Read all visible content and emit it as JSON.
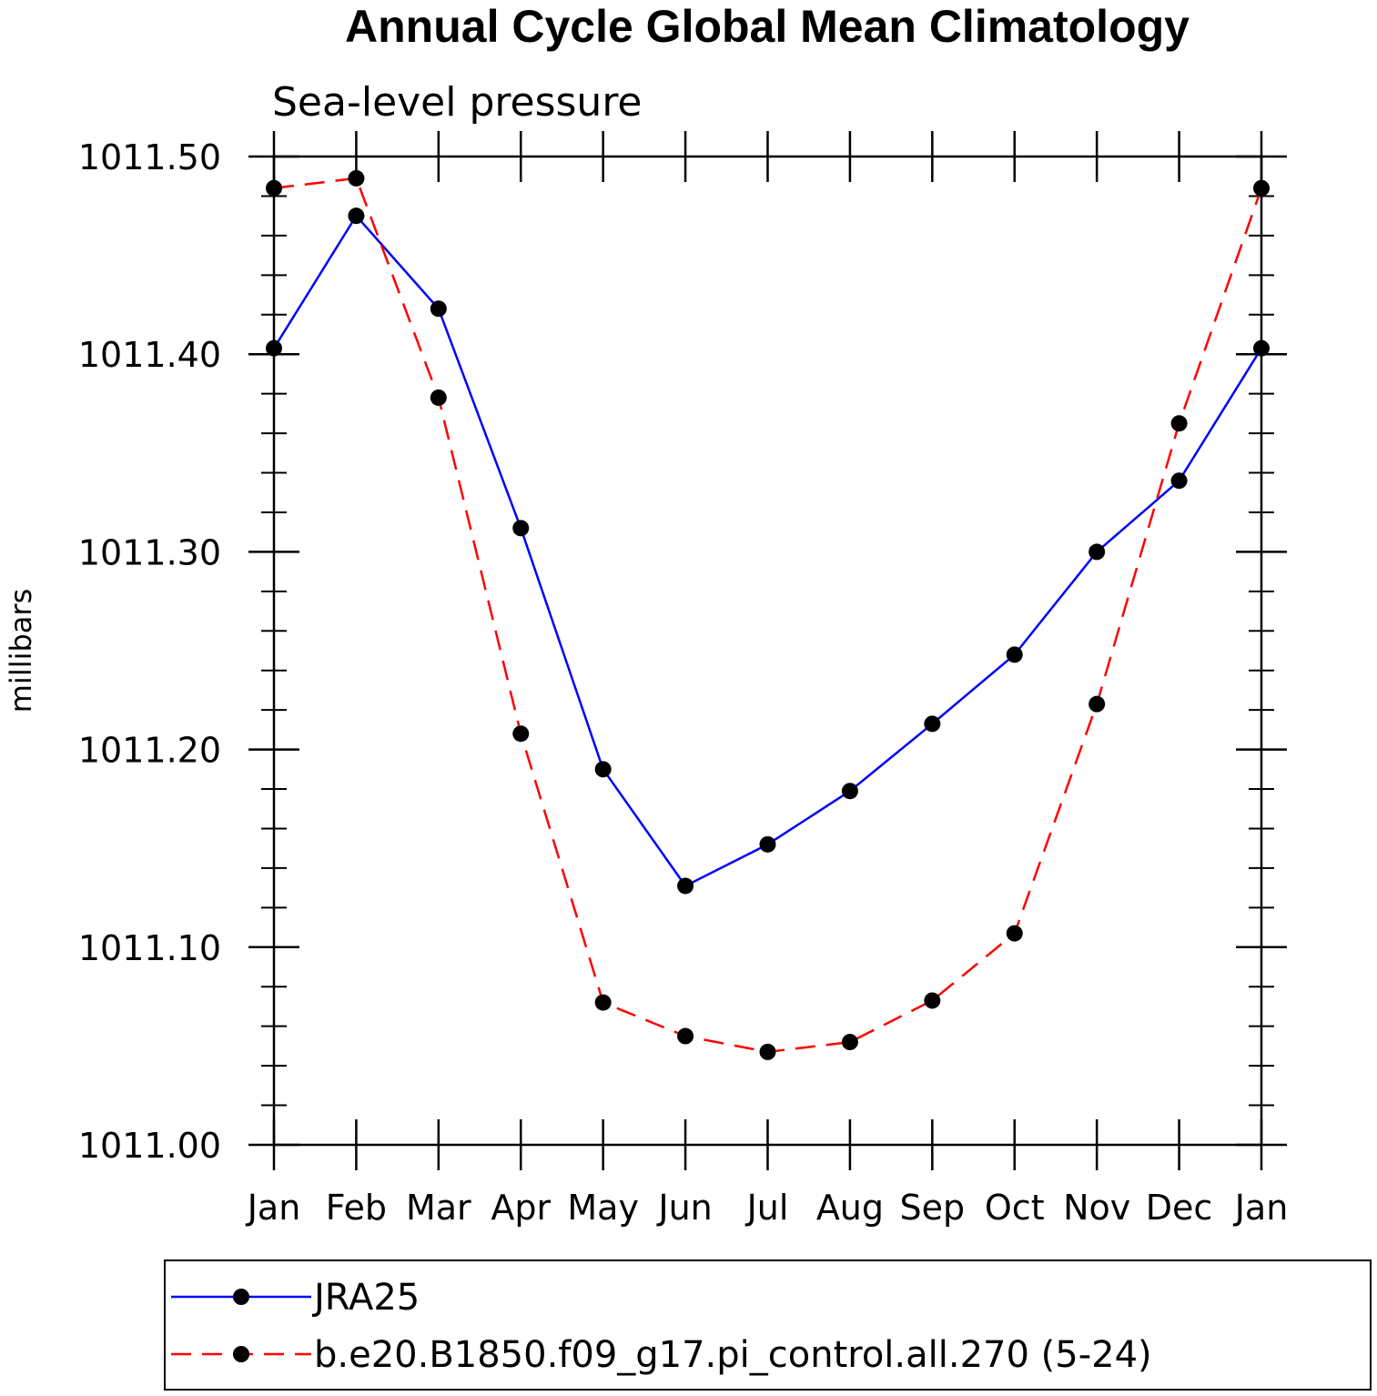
{
  "chart_data": {
    "type": "line",
    "title": "Annual Cycle Global Mean Climatology",
    "subtitle": "Sea-level pressure",
    "xlabel": "",
    "ylabel": "millibars",
    "categories": [
      "Jan",
      "Feb",
      "Mar",
      "Apr",
      "May",
      "Jun",
      "Jul",
      "Aug",
      "Sep",
      "Oct",
      "Nov",
      "Dec",
      "Jan"
    ],
    "ylim": [
      1011.0,
      1011.5
    ],
    "yticks": [
      1011.0,
      1011.1,
      1011.2,
      1011.3,
      1011.4,
      1011.5
    ],
    "ytick_labels": [
      "1011.00",
      "1011.10",
      "1011.20",
      "1011.30",
      "1011.40",
      "1011.50"
    ],
    "series": [
      {
        "name": "JRA25",
        "color": "#0000ff",
        "dash": "solid",
        "values": [
          1011.403,
          1011.47,
          1011.423,
          1011.312,
          1011.19,
          1011.131,
          1011.152,
          1011.179,
          1011.213,
          1011.248,
          1011.3,
          1011.336,
          1011.403
        ]
      },
      {
        "name": "b.e20.B1850.f09_g17.pi_control.all.270 (5-24)",
        "color": "#ff0000",
        "dash": "dashed",
        "values": [
          1011.484,
          1011.489,
          1011.378,
          1011.208,
          1011.072,
          1011.055,
          1011.047,
          1011.052,
          1011.073,
          1011.107,
          1011.223,
          1011.365,
          1011.484
        ]
      }
    ]
  }
}
